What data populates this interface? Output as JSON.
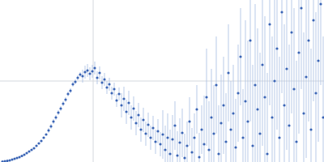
{
  "chart_data": {
    "type": "scatter",
    "color": "#3a64b5",
    "marker": "circle",
    "xlim": [
      0,
      400
    ],
    "ylim": [
      0,
      200
    ],
    "xticks": [
      115
    ],
    "yticks": [
      100
    ],
    "grid": true,
    "tick_labels": false,
    "x": [
      3,
      6,
      9,
      12,
      15,
      18,
      21,
      24,
      27,
      30,
      33,
      36,
      39,
      42,
      45,
      48,
      51,
      54,
      57,
      60,
      63,
      66,
      69,
      72,
      75,
      78,
      81,
      84,
      87,
      90,
      93,
      96,
      99,
      102,
      105,
      108,
      111,
      114,
      117,
      120,
      123,
      126,
      129,
      132,
      135,
      138,
      141,
      144,
      147,
      150,
      153,
      156,
      159,
      162,
      165,
      168,
      171,
      174,
      177,
      180,
      183,
      186,
      189,
      192,
      195,
      198,
      201,
      204,
      207,
      210,
      213,
      216,
      219,
      222,
      225,
      228,
      231,
      234,
      237,
      240,
      243,
      246,
      249,
      252,
      255,
      258,
      261,
      264,
      267,
      270,
      273,
      276,
      279,
      282,
      285,
      288,
      291,
      294,
      297,
      300,
      303,
      306,
      309,
      312,
      315,
      318,
      321,
      324,
      327,
      330,
      333,
      336,
      339,
      342,
      345,
      348,
      351,
      354,
      357,
      360,
      363,
      366,
      369,
      372,
      375,
      378,
      381,
      384,
      387,
      390,
      393,
      396,
      399
    ],
    "values": [
      0.5,
      1,
      1.5,
      2,
      3,
      4,
      5,
      6,
      7.5,
      9,
      11,
      13,
      15,
      17,
      20,
      23,
      26,
      30,
      34,
      39,
      44,
      50,
      55,
      61,
      66,
      72,
      77,
      84,
      88,
      96,
      99,
      104,
      108,
      106,
      111,
      113,
      109,
      112,
      116,
      104,
      110,
      98,
      102,
      92,
      96,
      85,
      90,
      76,
      84,
      70,
      78,
      62,
      73,
      55,
      66,
      48,
      58,
      40,
      52,
      35,
      46,
      30,
      42,
      25,
      38,
      22,
      34,
      15,
      30,
      10,
      28,
      45,
      8,
      24,
      36,
      5,
      20,
      50,
      12,
      30,
      65,
      6,
      40,
      22,
      80,
      15,
      55,
      35,
      95,
      10,
      48,
      70,
      25,
      110,
      40,
      60,
      18,
      85,
      130,
      30,
      75,
      50,
      150,
      20,
      95,
      65,
      35,
      120,
      80,
      10,
      170,
      55,
      100,
      140,
      30,
      185,
      70,
      115,
      45,
      160,
      90,
      25,
      135,
      190,
      60,
      105,
      150,
      40,
      175,
      85,
      125,
      195,
      55
    ],
    "errors": [
      1,
      1,
      1,
      1,
      1,
      1,
      1,
      1,
      1,
      1,
      1,
      1,
      1,
      1,
      1,
      1,
      1,
      1,
      1,
      3,
      3,
      3,
      3,
      3,
      3,
      3,
      3,
      3,
      3,
      3,
      3,
      3,
      3,
      8,
      8,
      8,
      8,
      8,
      8,
      8,
      8,
      8,
      8,
      8,
      8,
      8,
      8,
      8,
      8,
      15,
      15,
      15,
      15,
      15,
      15,
      15,
      15,
      15,
      15,
      15,
      15,
      15,
      15,
      15,
      15,
      15,
      30,
      30,
      30,
      30,
      30,
      30,
      30,
      30,
      30,
      30,
      30,
      30,
      30,
      30,
      30,
      30,
      30,
      60,
      60,
      60,
      60,
      60,
      60,
      60,
      60,
      60,
      60,
      60,
      60,
      60,
      60,
      60,
      60,
      60,
      100,
      100,
      100,
      100,
      100,
      100,
      100,
      100,
      100,
      100,
      100,
      100,
      100,
      100,
      100,
      100,
      100,
      100,
      100,
      100,
      100,
      100,
      100,
      100,
      100,
      100,
      100,
      100,
      100,
      100,
      100,
      100,
      100
    ]
  }
}
